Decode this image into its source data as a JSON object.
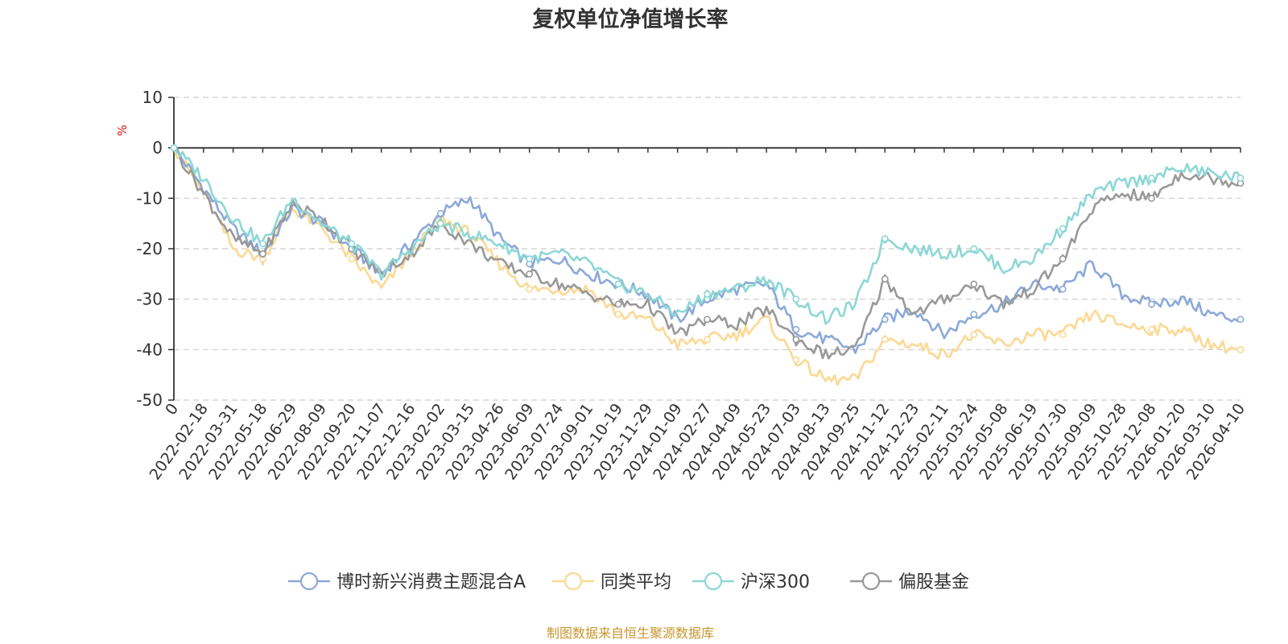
{
  "chart_data": {
    "type": "line",
    "title": "复权单位净值增长率",
    "ylabel": "%",
    "ylim": [
      -50,
      10
    ],
    "yticks": [
      "10",
      "0",
      "-10",
      "-20",
      "-30",
      "-40",
      "-50"
    ],
    "xticks": [
      "0",
      "2022-02-18",
      "2022-03-31",
      "2022-05-18",
      "2022-06-29",
      "2022-08-09",
      "2022-09-20",
      "2022-11-07",
      "2022-12-16",
      "2023-02-02",
      "2023-03-15",
      "2023-04-26",
      "2023-06-09",
      "2023-07-24",
      "2023-09-01",
      "2023-10-19",
      "2023-11-29",
      "2024-01-09",
      "2024-02-27",
      "2024-04-09",
      "2024-05-23",
      "2024-07-03",
      "2024-08-13",
      "2024-09-25",
      "2024-11-12",
      "2024-12-23",
      "2025-02-11",
      "2025-03-24",
      "2025-05-08",
      "2025-06-19",
      "2025-07-30",
      "2025-09-09",
      "2025-10-28",
      "2025-12-08",
      "2026-01-20",
      "2026-03-10",
      "2026-04-10"
    ],
    "grid": true,
    "legend_position": "bottom-center",
    "series": [
      {
        "name": "博时新兴消费主题混合A",
        "color": "#8ba9d8",
        "values": [
          0,
          -8,
          -16,
          -21,
          -12,
          -15,
          -20,
          -25,
          -19,
          -13,
          -10,
          -18,
          -23,
          -22,
          -25,
          -27,
          -29,
          -34,
          -30,
          -28,
          -27,
          -36,
          -38,
          -40,
          -34,
          -32,
          -37,
          -33,
          -31,
          -27,
          -28,
          -23,
          -29,
          -31,
          -30,
          -33,
          -34
        ]
      },
      {
        "name": "同类平均",
        "color": "#fcd893",
        "values": [
          0,
          -9,
          -20,
          -22,
          -12,
          -16,
          -22,
          -28,
          -21,
          -14,
          -17,
          -23,
          -28,
          -28,
          -28,
          -33,
          -34,
          -39,
          -38,
          -37,
          -34,
          -42,
          -46,
          -46,
          -38,
          -39,
          -41,
          -37,
          -39,
          -37,
          -37,
          -33,
          -35,
          -36,
          -36,
          -39,
          -40
        ]
      },
      {
        "name": "沪深300",
        "color": "#8cd7d6",
        "values": [
          0,
          -6,
          -14,
          -19,
          -10,
          -15,
          -19,
          -25,
          -20,
          -15,
          -17,
          -19,
          -22,
          -21,
          -23,
          -27,
          -29,
          -33,
          -29,
          -28,
          -26,
          -30,
          -34,
          -31,
          -18,
          -20,
          -21,
          -20,
          -24,
          -22,
          -16,
          -9,
          -7,
          -6,
          -4,
          -5,
          -6
        ]
      },
      {
        "name": "偏股基金",
        "color": "#999999",
        "values": [
          0,
          -9,
          -18,
          -21,
          -11,
          -14,
          -20,
          -25,
          -21,
          -15,
          -19,
          -23,
          -25,
          -27,
          -29,
          -31,
          -31,
          -37,
          -34,
          -35,
          -32,
          -38,
          -41,
          -40,
          -26,
          -33,
          -30,
          -27,
          -31,
          -28,
          -22,
          -12,
          -9,
          -10,
          -5,
          -6,
          -7
        ]
      }
    ],
    "source": "制图数据来自恒生聚源数据库"
  }
}
